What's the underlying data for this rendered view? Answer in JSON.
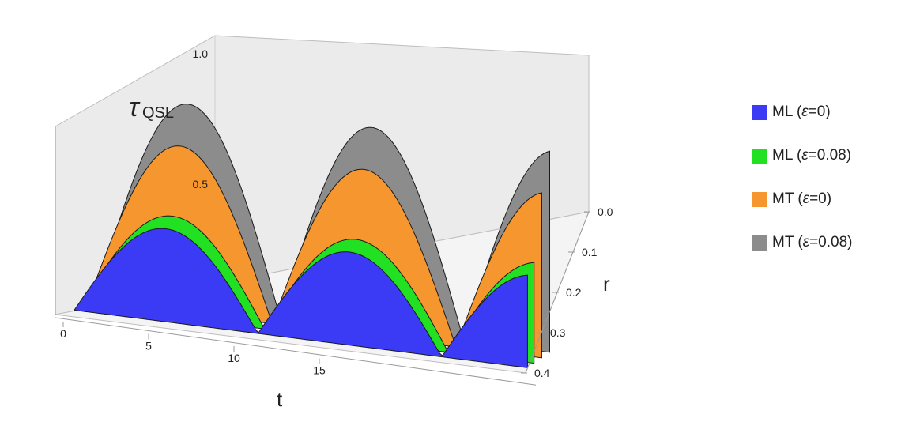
{
  "chart_data": {
    "type": "surface3d",
    "title": "",
    "zlabel": "τ",
    "zlabel_sub": "QSL",
    "xlabel": "t",
    "ylabel": "r",
    "x_ticks": [
      "0",
      "5",
      "10",
      "15"
    ],
    "y_ticks": [
      "0.0",
      "0.1",
      "0.2",
      "0.3",
      "0.4"
    ],
    "z_ticks": [
      "0.5",
      "1.0"
    ],
    "xlim": [
      0,
      16
    ],
    "ylim": [
      0,
      0.4
    ],
    "zlim": [
      0,
      1.1
    ],
    "legend_position": "right",
    "series": [
      {
        "name_prefix": "ML (",
        "epsilon": "ε",
        "name_suffix": "=0)",
        "color": "#3b3bf5"
      },
      {
        "name_prefix": "ML (",
        "epsilon": "ε",
        "name_suffix": "=0.08)",
        "color": "#22e022"
      },
      {
        "name_prefix": "MT (",
        "epsilon": "ε",
        "name_suffix": "=0)",
        "color": "#f5962e"
      },
      {
        "name_prefix": "MT (",
        "epsilon": "ε",
        "name_suffix": "=0.08)",
        "color": "#8c8c8c"
      }
    ]
  }
}
